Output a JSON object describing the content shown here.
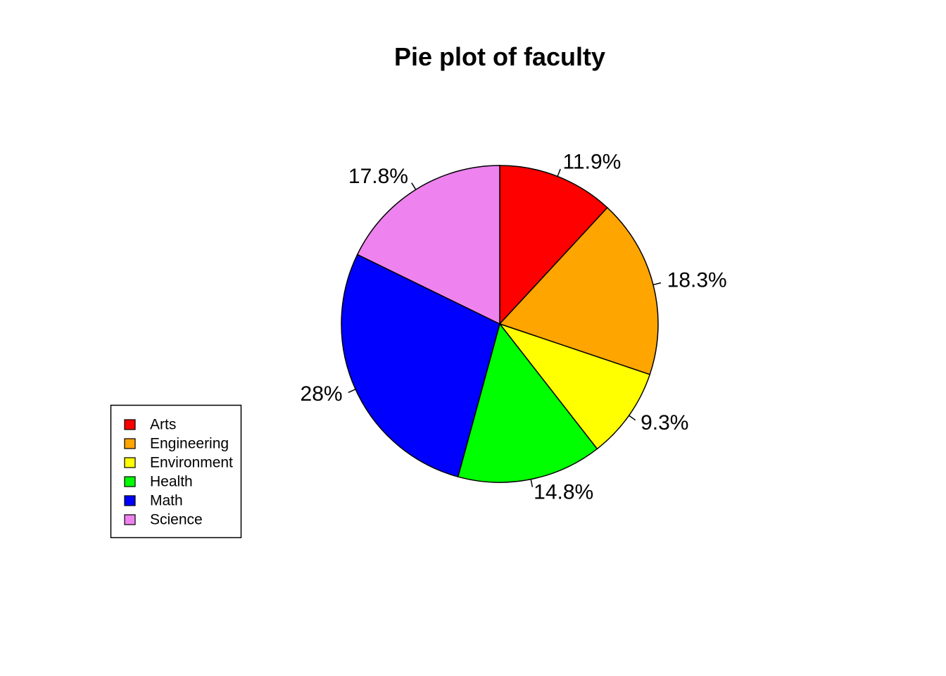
{
  "chart_data": {
    "type": "pie",
    "title": "Pie plot of faculty",
    "start_angle_deg": 90,
    "direction": "clockwise",
    "categories": [
      "Arts",
      "Engineering",
      "Environment",
      "Health",
      "Math",
      "Science"
    ],
    "values": [
      11.9,
      18.3,
      9.3,
      14.8,
      28.0,
      17.8
    ],
    "labels": [
      "11.9%",
      "18.3%",
      "9.3%",
      "14.8%",
      "28%",
      "17.8%"
    ],
    "colors": [
      "#ff0000",
      "#ffa500",
      "#ffff00",
      "#00ff00",
      "#0000ff",
      "#ee82ee"
    ],
    "legend": {
      "placement": "bottom-left",
      "entries": [
        "Arts",
        "Engineering",
        "Environment",
        "Health",
        "Math",
        "Science"
      ]
    }
  }
}
